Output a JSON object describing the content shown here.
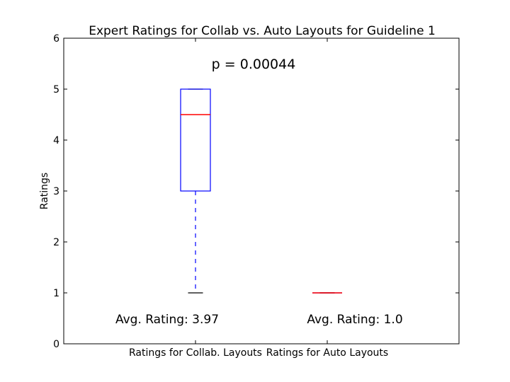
{
  "chart_data": {
    "type": "box",
    "title": "Expert Ratings for Collab vs. Auto Layouts for Guideline 1",
    "xlabel": "",
    "ylabel": "Ratings",
    "ylim": [
      0,
      6
    ],
    "yticks": [
      0,
      1,
      2,
      3,
      4,
      5,
      6
    ],
    "categories": [
      "Ratings for Collab. Layouts",
      "Ratings for Auto Layouts"
    ],
    "boxes": [
      {
        "category": "Ratings for Collab. Layouts",
        "whisker_low": 1,
        "q1": 3,
        "median": 4.5,
        "q3": 5,
        "whisker_high": 5
      },
      {
        "category": "Ratings for Auto Layouts",
        "whisker_low": 1,
        "q1": 1,
        "median": 1,
        "q3": 1,
        "whisker_high": 1
      }
    ],
    "annotations": {
      "p_value": "p = 0.00044",
      "avg_collab": "Avg. Rating: 3.97",
      "avg_auto": "Avg. Rating: 1.0"
    },
    "grid": false,
    "colors": {
      "box": "#0000ff",
      "median": "#ff0000",
      "whisker": "#0000ff",
      "cap": "#000000",
      "axes": "#000000"
    }
  }
}
